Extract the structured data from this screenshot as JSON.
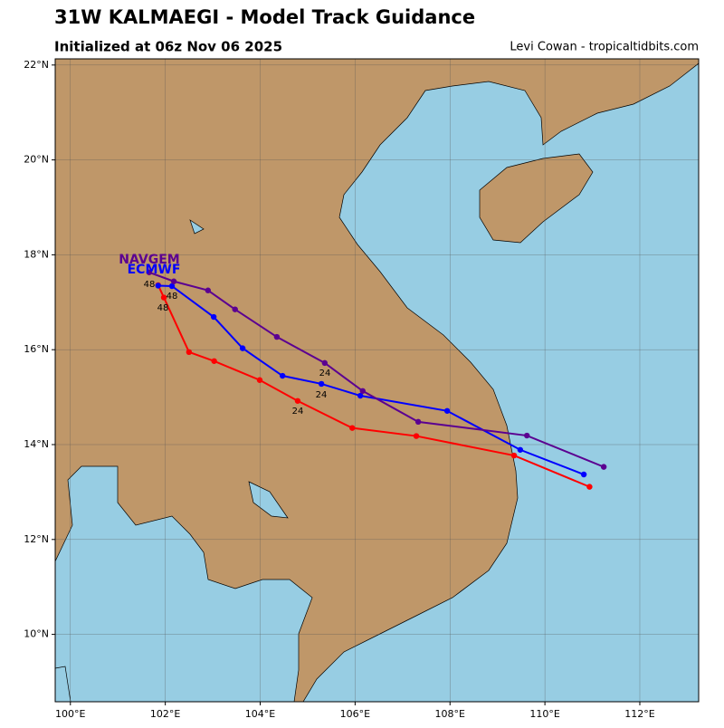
{
  "chart_data": {
    "type": "track",
    "title": "31W KALMAEGI - Model Track Guidance",
    "subtitle": "Initialized at 06z Nov 06 2025",
    "credit": "Levi Cowan - tropicaltidbits.com",
    "xlim": [
      99.68,
      113.24
    ],
    "ylim": [
      8.58,
      22.13
    ],
    "xticks": [
      {
        "value": 100,
        "label": "100°E"
      },
      {
        "value": 102,
        "label": "102°E"
      },
      {
        "value": 104,
        "label": "104°E"
      },
      {
        "value": 106,
        "label": "106°E"
      },
      {
        "value": 108,
        "label": "108°E"
      },
      {
        "value": 110,
        "label": "110°E"
      },
      {
        "value": 112,
        "label": "112°E"
      }
    ],
    "yticks": [
      {
        "value": 10,
        "label": "10°N"
      },
      {
        "value": 12,
        "label": "12°N"
      },
      {
        "value": 14,
        "label": "14°N"
      },
      {
        "value": 16,
        "label": "16°N"
      },
      {
        "value": 18,
        "label": "18°N"
      },
      {
        "value": 20,
        "label": "20°N"
      },
      {
        "value": 22,
        "label": "22°N"
      }
    ],
    "grid": true,
    "series": [
      {
        "color": "#ff0000",
        "x": [
          110.94,
          109.35,
          107.29,
          105.94,
          104.79,
          103.99,
          103.03,
          102.5,
          101.97,
          101.85
        ],
        "values": [
          13.11,
          13.77,
          14.18,
          14.35,
          14.92,
          15.36,
          15.76,
          15.95,
          17.1,
          17.36
        ]
      },
      {
        "name": "ECMWF",
        "color": "#0000ff",
        "x": [
          110.82,
          109.48,
          107.94,
          106.11,
          105.29,
          104.47,
          103.63,
          103.02,
          102.14,
          101.85
        ],
        "values": [
          13.37,
          13.89,
          14.71,
          15.03,
          15.28,
          15.45,
          16.03,
          16.69,
          17.34,
          17.35
        ]
      },
      {
        "name": "NAVGEM",
        "color": "#5b0091",
        "x": [
          111.24,
          109.62,
          107.33,
          106.16,
          105.36,
          104.35,
          103.47,
          102.9,
          102.18,
          101.66
        ],
        "values": [
          13.53,
          14.19,
          14.48,
          15.13,
          15.72,
          16.27,
          16.85,
          17.25,
          17.44,
          17.63
        ]
      }
    ],
    "hour_labels": [
      "24",
      "24",
      "24",
      "48",
      "48",
      "48"
    ]
  }
}
